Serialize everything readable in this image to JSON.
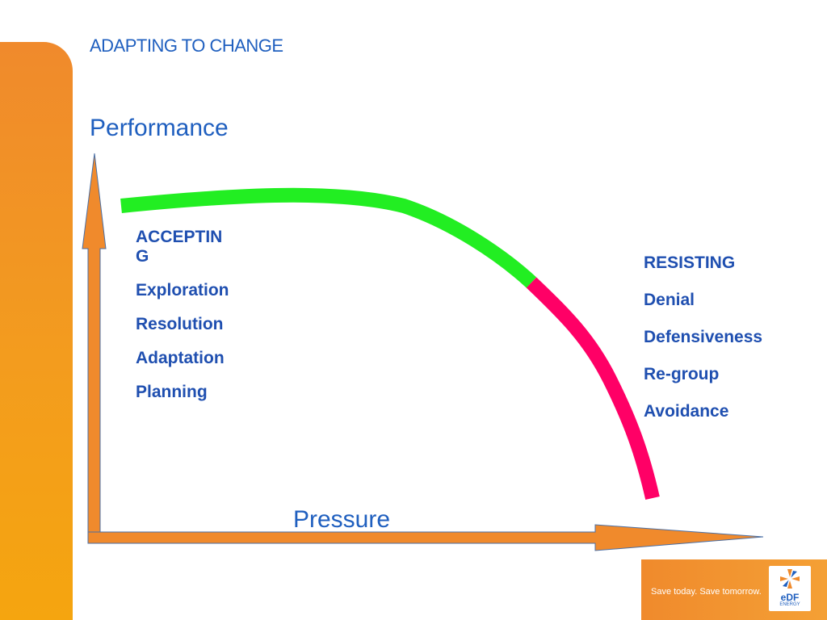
{
  "slide": {
    "title": "ADAPTING TO CHANGE"
  },
  "axes": {
    "y_label": "Performance",
    "x_label": "Pressure"
  },
  "accepting": {
    "heading": "ACCEPTING",
    "items": [
      "Exploration",
      "Resolution",
      "Adaptation",
      "Planning"
    ]
  },
  "resisting": {
    "heading": "RESISTING",
    "items": [
      "Denial",
      "Defensiveness",
      "Re-group",
      "Avoidance"
    ]
  },
  "curve": {
    "accepting_color": "#22ee22",
    "resisting_color": "#ff0066"
  },
  "colors": {
    "title": "#1f5fbf",
    "labels": "#1f4fb0",
    "accent_orange": "#f08a2c"
  },
  "footer": {
    "tagline": "Save today. Save tomorrow.",
    "logo_text": "eDF",
    "logo_subtext": "ENERGY",
    "logo_icon": "edf-pinwheel-icon"
  }
}
